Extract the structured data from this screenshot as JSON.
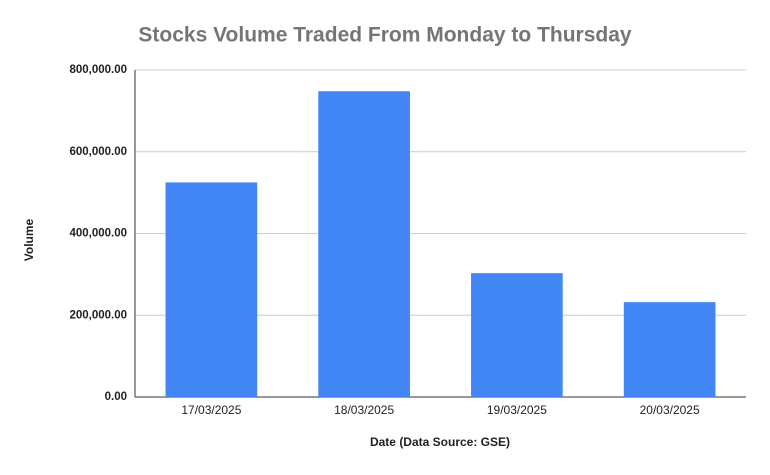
{
  "chart_data": {
    "type": "bar",
    "title": "Stocks Volume Traded From Monday to Thursday",
    "x_label": "Date (Data Source: GSE)",
    "y_label": "Volume",
    "categories": [
      "17/03/2025",
      "18/03/2025",
      "19/03/2025",
      "20/03/2025"
    ],
    "values": [
      525000,
      748000,
      303000,
      232000
    ],
    "color": "#4285f4",
    "ylim": [
      0,
      800000
    ],
    "yticks": [
      {
        "value": 0,
        "label": "0.00"
      },
      {
        "value": 200000,
        "label": "200,000.00"
      },
      {
        "value": 400000,
        "label": "400,000.00"
      },
      {
        "value": 600000,
        "label": "600,000.00"
      },
      {
        "value": 800000,
        "label": "800,000.00"
      }
    ],
    "grid": true
  }
}
